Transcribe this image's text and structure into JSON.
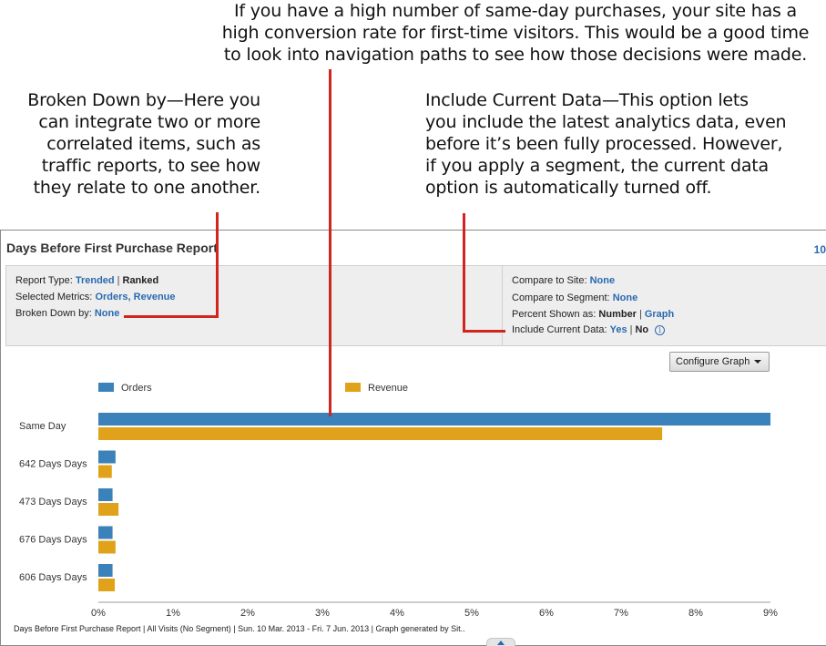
{
  "callouts": {
    "top": [
      "If you have a high number of same-day purchases, your site has a",
      "high conversion rate for first-time visitors. This would be a good time",
      "to look into navigation paths to see how those decisions were made."
    ],
    "left": [
      "Broken Down by—Here you",
      "can integrate two or more",
      "correlated items, such as",
      "traffic reports, to see how",
      "they relate to one another."
    ],
    "right": [
      "Include Current Data—This option lets",
      "you include the latest analytics data, even",
      "before it’s been fully processed. However,",
      "if you apply a segment, the current data",
      "option is automatically turned off."
    ]
  },
  "callout_color": "#d0261e",
  "report": {
    "title": "Days Before First Purchase Report",
    "corner_text": "10"
  },
  "settings": {
    "report_type_label": "Report Type:",
    "report_type_option1": "Trended",
    "report_type_option2": "Ranked",
    "metrics_label": "Selected Metrics:",
    "metric1": "Orders",
    "metric2": "Revenue",
    "broken_down_label": "Broken Down by:",
    "broken_down_value": "None",
    "compare_site_label": "Compare to Site:",
    "compare_site_value": "None",
    "compare_segment_label": "Compare to Segment:",
    "compare_segment_value": "None",
    "percent_label": "Percent Shown as:",
    "percent_option1": "Number",
    "percent_option2": "Graph",
    "current_data_label": "Include Current Data:",
    "current_data_option1": "Yes",
    "current_data_option2": "No",
    "info_glyph": "i",
    "separator": "|"
  },
  "configure_button": "Configure Graph",
  "chart_data": {
    "type": "bar",
    "orientation": "horizontal",
    "categories": [
      "Same Day",
      "642 Days Days",
      "473 Days Days",
      "676 Days Days",
      "606 Days Days"
    ],
    "series": [
      {
        "name": "Orders",
        "color": "#3b82ba",
        "values": [
          9.0,
          0.23,
          0.19,
          0.19,
          0.19
        ]
      },
      {
        "name": "Revenue",
        "color": "#e0a21a",
        "values": [
          7.55,
          0.18,
          0.27,
          0.23,
          0.22
        ]
      }
    ],
    "x_ticks": [
      "0%",
      "1%",
      "2%",
      "3%",
      "4%",
      "5%",
      "6%",
      "7%",
      "8%",
      "9%"
    ],
    "xlim": [
      0,
      9
    ],
    "unit": "%",
    "legend_position": "top-left",
    "grid": false
  },
  "footer_note": "Days Before First Purchase Report | All Visits (No Segment) | Sun. 10 Mar. 2013 - Fri.  7 Jun. 2013 | Graph generated by Sit.."
}
